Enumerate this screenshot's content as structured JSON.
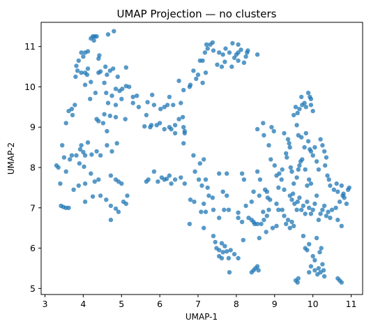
{
  "chart_data": {
    "type": "scatter",
    "title": "UMAP Projection — no clusters",
    "xlabel": "UMAP-1",
    "ylabel": "UMAP-2",
    "xlim": [
      2.9,
      11.3
    ],
    "ylim": [
      4.85,
      11.6
    ],
    "xticks": [
      3,
      4,
      5,
      6,
      7,
      8,
      9,
      10,
      11
    ],
    "yticks": [
      5,
      6,
      7,
      8,
      9,
      10,
      11
    ],
    "grid": false,
    "marker_color": "#1f77b4",
    "marker_alpha": 0.75,
    "points": [
      [
        4.25,
        11.25
      ],
      [
        4.3,
        11.25
      ],
      [
        4.35,
        11.25
      ],
      [
        4.2,
        11.2
      ],
      [
        4.28,
        11.15
      ],
      [
        4.65,
        11.3
      ],
      [
        4.8,
        11.38
      ],
      [
        3.95,
        10.85
      ],
      [
        4.05,
        10.85
      ],
      [
        4.12,
        10.88
      ],
      [
        4.0,
        10.75
      ],
      [
        4.4,
        10.7
      ],
      [
        4.42,
        10.78
      ],
      [
        3.88,
        10.65
      ],
      [
        3.82,
        10.52
      ],
      [
        4.58,
        10.5
      ],
      [
        4.12,
        10.45
      ],
      [
        3.85,
        10.4
      ],
      [
        3.95,
        10.35
      ],
      [
        4.05,
        10.35
      ],
      [
        4.4,
        10.35
      ],
      [
        4.45,
        10.38
      ],
      [
        3.8,
        10.25
      ],
      [
        4.1,
        10.3
      ],
      [
        4.62,
        10.3
      ],
      [
        4.78,
        10.45
      ],
      [
        4.7,
        10.4
      ],
      [
        5.12,
        10.48
      ],
      [
        4.9,
        10.25
      ],
      [
        4.2,
        10.12
      ],
      [
        4.55,
        10.1
      ],
      [
        4.05,
        10.05
      ],
      [
        5.02,
        9.95
      ],
      [
        5.12,
        10.02
      ],
      [
        5.2,
        10.0
      ],
      [
        4.85,
        9.95
      ],
      [
        4.95,
        9.9
      ],
      [
        5.0,
        9.7
      ],
      [
        4.32,
        9.85
      ],
      [
        4.6,
        9.85
      ],
      [
        4.75,
        9.78
      ],
      [
        4.18,
        9.7
      ],
      [
        3.78,
        9.55
      ],
      [
        4.65,
        9.6
      ],
      [
        4.85,
        9.55
      ],
      [
        3.72,
        9.3
      ],
      [
        3.62,
        9.4
      ],
      [
        3.7,
        9.45
      ],
      [
        3.55,
        9.1
      ],
      [
        4.35,
        9.2
      ],
      [
        4.4,
        9.15
      ],
      [
        4.55,
        9.32
      ],
      [
        4.7,
        9.28
      ],
      [
        4.85,
        9.25
      ],
      [
        5.1,
        9.2
      ],
      [
        4.52,
        9.1
      ],
      [
        5.3,
        9.75
      ],
      [
        5.3,
        9.6
      ],
      [
        5.4,
        9.78
      ],
      [
        5.45,
        9.5
      ],
      [
        5.8,
        9.8
      ],
      [
        5.68,
        9.62
      ],
      [
        5.85,
        9.55
      ],
      [
        5.65,
        9.3
      ],
      [
        6.02,
        9.45
      ],
      [
        6.12,
        9.5
      ],
      [
        6.2,
        9.55
      ],
      [
        6.35,
        9.55
      ],
      [
        6.25,
        9.75
      ],
      [
        6.55,
        9.6
      ],
      [
        6.5,
        10.15
      ],
      [
        6.62,
        9.92
      ],
      [
        6.78,
        10.0
      ],
      [
        6.8,
        10.05
      ],
      [
        6.95,
        10.2
      ],
      [
        7.0,
        10.3
      ],
      [
        7.2,
        10.35
      ],
      [
        6.88,
        10.4
      ],
      [
        5.78,
        9.05
      ],
      [
        5.6,
        9.02
      ],
      [
        5.75,
        9.0
      ],
      [
        5.92,
        9.05
      ],
      [
        6.0,
        9.1
      ],
      [
        6.12,
        8.95
      ],
      [
        6.4,
        9.05
      ],
      [
        6.25,
        9.0
      ],
      [
        6.3,
        8.95
      ],
      [
        6.62,
        9.0
      ],
      [
        6.4,
        8.85
      ],
      [
        6.5,
        9.2
      ],
      [
        6.6,
        9.25
      ],
      [
        6.65,
        8.9
      ],
      [
        6.65,
        8.85
      ],
      [
        7.05,
        10.65
      ],
      [
        7.12,
        10.65
      ],
      [
        7.18,
        10.85
      ],
      [
        7.22,
        11.05
      ],
      [
        7.25,
        10.95
      ],
      [
        7.32,
        11.05
      ],
      [
        7.38,
        11.1
      ],
      [
        7.4,
        10.9
      ],
      [
        7.12,
        10.1
      ],
      [
        7.5,
        10.55
      ],
      [
        7.62,
        10.5
      ],
      [
        7.7,
        10.62
      ],
      [
        7.65,
        10.8
      ],
      [
        7.55,
        10.85
      ],
      [
        7.72,
        10.95
      ],
      [
        7.82,
        10.85
      ],
      [
        7.9,
        11.08
      ],
      [
        8.0,
        10.8
      ],
      [
        8.05,
        10.85
      ],
      [
        8.12,
        10.92
      ],
      [
        8.05,
        10.65
      ],
      [
        7.95,
        10.72
      ],
      [
        7.88,
        10.5
      ],
      [
        8.2,
        10.6
      ],
      [
        8.25,
        10.75
      ],
      [
        8.28,
        10.85
      ],
      [
        8.3,
        10.9
      ],
      [
        8.55,
        10.8
      ],
      [
        8.05,
        11.05
      ],
      [
        3.3,
        8.05
      ],
      [
        3.35,
        8.0
      ],
      [
        3.45,
        8.55
      ],
      [
        3.5,
        8.25
      ],
      [
        3.55,
        7.9
      ],
      [
        3.65,
        8.2
      ],
      [
        3.7,
        8.3
      ],
      [
        3.82,
        8.3
      ],
      [
        3.92,
        8.45
      ],
      [
        3.95,
        8.55
      ],
      [
        4.0,
        8.38
      ],
      [
        4.05,
        8.3
      ],
      [
        4.12,
        8.62
      ],
      [
        4.22,
        8.32
      ],
      [
        4.35,
        8.4
      ],
      [
        4.45,
        8.3
      ],
      [
        4.62,
        8.55
      ],
      [
        3.9,
        8.1
      ],
      [
        4.02,
        8.02
      ],
      [
        4.2,
        7.85
      ],
      [
        4.05,
        7.6
      ],
      [
        4.3,
        7.65
      ],
      [
        4.4,
        7.7
      ],
      [
        4.72,
        7.8
      ],
      [
        4.85,
        7.7
      ],
      [
        4.92,
        7.65
      ],
      [
        5.0,
        7.6
      ],
      [
        4.75,
        8.4
      ],
      [
        4.88,
        8.6
      ],
      [
        4.62,
        8.9
      ],
      [
        3.4,
        7.6
      ],
      [
        3.75,
        7.45
      ],
      [
        3.88,
        7.55
      ],
      [
        3.42,
        7.05
      ],
      [
        3.48,
        7.02
      ],
      [
        3.55,
        7.0
      ],
      [
        3.62,
        7.0
      ],
      [
        4.25,
        7.28
      ],
      [
        4.05,
        7.15
      ],
      [
        4.45,
        7.3
      ],
      [
        4.6,
        7.2
      ],
      [
        4.72,
        7.05
      ],
      [
        4.85,
        6.98
      ],
      [
        4.92,
        6.9
      ],
      [
        4.72,
        6.7
      ],
      [
        5.05,
        7.15
      ],
      [
        5.15,
        7.3
      ],
      [
        5.12,
        7.1
      ],
      [
        5.65,
        7.65
      ],
      [
        5.7,
        7.7
      ],
      [
        5.85,
        7.9
      ],
      [
        5.95,
        7.65
      ],
      [
        6.05,
        7.75
      ],
      [
        6.12,
        7.7
      ],
      [
        6.18,
        7.72
      ],
      [
        6.25,
        7.8
      ],
      [
        6.3,
        7.6
      ],
      [
        6.4,
        7.7
      ],
      [
        6.55,
        7.75
      ],
      [
        6.62,
        8.6
      ],
      [
        6.65,
        7.6
      ],
      [
        6.88,
        8.3
      ],
      [
        6.92,
        7.9
      ],
      [
        6.8,
        7.2
      ],
      [
        6.9,
        7.15
      ],
      [
        7.02,
        7.7
      ],
      [
        7.05,
        8.1
      ],
      [
        7.1,
        7.55
      ],
      [
        7.15,
        8.2
      ],
      [
        7.2,
        7.7
      ],
      [
        7.25,
        7.5
      ],
      [
        7.28,
        7.3
      ],
      [
        7.15,
        7.1
      ],
      [
        6.78,
        6.6
      ],
      [
        7.08,
        6.9
      ],
      [
        7.2,
        6.9
      ],
      [
        7.15,
        6.5
      ],
      [
        7.38,
        7.25
      ],
      [
        7.4,
        6.95
      ],
      [
        7.55,
        7.85
      ],
      [
        7.75,
        7.85
      ],
      [
        7.65,
        7.4
      ],
      [
        7.75,
        7.3
      ],
      [
        7.68,
        6.95
      ],
      [
        7.55,
        6.75
      ],
      [
        7.8,
        6.95
      ],
      [
        7.4,
        6.3
      ],
      [
        7.45,
        6.15
      ],
      [
        7.48,
        6.0
      ],
      [
        7.55,
        5.95
      ],
      [
        7.62,
        6.12
      ],
      [
        7.7,
        6.05
      ],
      [
        7.55,
        5.8
      ],
      [
        7.65,
        5.9
      ],
      [
        7.75,
        5.92
      ],
      [
        7.8,
        5.75
      ],
      [
        7.85,
        5.95
      ],
      [
        7.95,
        5.85
      ],
      [
        8.05,
        5.75
      ],
      [
        7.82,
        5.4
      ],
      [
        7.62,
        5.75
      ],
      [
        8.05,
        6.75
      ],
      [
        8.05,
        6.88
      ],
      [
        8.15,
        6.65
      ],
      [
        8.18,
        6.2
      ],
      [
        8.32,
        6.75
      ],
      [
        8.4,
        6.7
      ],
      [
        8.45,
        6.65
      ],
      [
        8.48,
        6.6
      ],
      [
        8.55,
        6.6
      ],
      [
        8.25,
        7.05
      ],
      [
        8.15,
        7.85
      ],
      [
        8.2,
        7.7
      ],
      [
        8.45,
        7.4
      ],
      [
        8.55,
        7.9
      ],
      [
        8.6,
        7.3
      ],
      [
        8.62,
        7.7
      ],
      [
        8.75,
        7.45
      ],
      [
        8.8,
        7.4
      ],
      [
        8.82,
        7.25
      ],
      [
        8.88,
        7.2
      ],
      [
        8.4,
        7.15
      ],
      [
        8.7,
        6.9
      ],
      [
        8.8,
        6.8
      ],
      [
        8.85,
        6.95
      ],
      [
        8.72,
        6.7
      ],
      [
        8.65,
        6.6
      ],
      [
        8.6,
        6.25
      ],
      [
        8.78,
        6.4
      ],
      [
        8.95,
        6.5
      ],
      [
        9.05,
        6.55
      ],
      [
        8.4,
        5.4
      ],
      [
        8.45,
        5.45
      ],
      [
        8.5,
        5.5
      ],
      [
        8.55,
        5.55
      ],
      [
        8.58,
        5.45
      ],
      [
        8.55,
        8.95
      ],
      [
        8.7,
        9.1
      ],
      [
        8.72,
        8.8
      ],
      [
        8.85,
        8.55
      ],
      [
        8.9,
        8.2
      ],
      [
        8.92,
        9.0
      ],
      [
        8.98,
        8.9
      ],
      [
        9.0,
        8.05
      ],
      [
        9.05,
        7.8
      ],
      [
        9.12,
        7.85
      ],
      [
        9.2,
        7.95
      ],
      [
        9.1,
        7.5
      ],
      [
        9.18,
        7.7
      ],
      [
        9.25,
        8.85
      ],
      [
        9.3,
        8.35
      ],
      [
        9.32,
        8.25
      ],
      [
        9.35,
        8.7
      ],
      [
        9.38,
        8.6
      ],
      [
        9.4,
        8.5
      ],
      [
        9.42,
        8.0
      ],
      [
        9.45,
        7.9
      ],
      [
        9.5,
        7.6
      ],
      [
        9.5,
        9.3
      ],
      [
        9.55,
        9.5
      ],
      [
        9.58,
        9.05
      ],
      [
        9.6,
        9.35
      ],
      [
        9.65,
        9.45
      ],
      [
        9.7,
        9.75
      ],
      [
        9.72,
        9.55
      ],
      [
        9.78,
        9.6
      ],
      [
        9.82,
        9.5
      ],
      [
        9.88,
        9.85
      ],
      [
        9.92,
        9.75
      ],
      [
        9.95,
        9.7
      ],
      [
        9.95,
        9.55
      ],
      [
        10.0,
        9.4
      ],
      [
        9.62,
        8.8
      ],
      [
        9.7,
        8.75
      ],
      [
        9.78,
        8.5
      ],
      [
        9.82,
        8.85
      ],
      [
        9.88,
        8.65
      ],
      [
        9.92,
        8.45
      ],
      [
        9.95,
        8.4
      ],
      [
        9.58,
        7.75
      ],
      [
        9.62,
        7.95
      ],
      [
        9.65,
        8.05
      ],
      [
        9.68,
        8.15
      ],
      [
        9.72,
        8.2
      ],
      [
        9.8,
        7.95
      ],
      [
        9.85,
        7.55
      ],
      [
        9.9,
        7.7
      ],
      [
        9.95,
        7.6
      ],
      [
        10.0,
        8.3
      ],
      [
        10.05,
        8.5
      ],
      [
        10.1,
        8.15
      ],
      [
        10.15,
        7.95
      ],
      [
        10.2,
        8.7
      ],
      [
        10.25,
        8.55
      ],
      [
        10.3,
        8.4
      ],
      [
        10.32,
        8.05
      ],
      [
        10.35,
        8.25
      ],
      [
        10.38,
        7.8
      ],
      [
        10.42,
        7.7
      ],
      [
        10.45,
        7.55
      ],
      [
        10.55,
        7.45
      ],
      [
        10.62,
        7.6
      ],
      [
        10.65,
        7.4
      ],
      [
        10.75,
        7.55
      ],
      [
        10.8,
        7.35
      ],
      [
        10.82,
        7.25
      ],
      [
        10.88,
        7.1
      ],
      [
        10.92,
        7.45
      ],
      [
        10.95,
        7.5
      ],
      [
        10.78,
        7.3
      ],
      [
        10.7,
        7.15
      ],
      [
        9.4,
        7.3
      ],
      [
        9.45,
        7.2
      ],
      [
        9.48,
        7.35
      ],
      [
        9.52,
        7.1
      ],
      [
        9.58,
        6.95
      ],
      [
        9.6,
        7.15
      ],
      [
        9.65,
        7.25
      ],
      [
        9.7,
        6.95
      ],
      [
        9.75,
        7.05
      ],
      [
        9.8,
        6.85
      ],
      [
        9.85,
        7.15
      ],
      [
        9.9,
        7.0
      ],
      [
        9.95,
        6.85
      ],
      [
        10.0,
        6.95
      ],
      [
        10.05,
        7.1
      ],
      [
        10.1,
        7.3
      ],
      [
        10.15,
        6.7
      ],
      [
        10.2,
        6.85
      ],
      [
        10.25,
        6.95
      ],
      [
        10.3,
        7.05
      ],
      [
        10.35,
        6.8
      ],
      [
        10.4,
        6.9
      ],
      [
        10.45,
        6.75
      ],
      [
        10.5,
        6.95
      ],
      [
        10.6,
        7.0
      ],
      [
        10.65,
        6.7
      ],
      [
        10.75,
        6.55
      ],
      [
        9.05,
        7.1
      ],
      [
        9.1,
        6.95
      ],
      [
        9.2,
        6.95
      ],
      [
        9.25,
        6.8
      ],
      [
        9.3,
        6.6
      ],
      [
        9.35,
        6.7
      ],
      [
        9.4,
        6.5
      ],
      [
        9.45,
        6.65
      ],
      [
        9.5,
        6.55
      ],
      [
        9.25,
        7.45
      ],
      [
        9.75,
        6.3
      ],
      [
        9.8,
        6.0
      ],
      [
        9.85,
        5.95
      ],
      [
        9.9,
        6.1
      ],
      [
        9.95,
        5.55
      ],
      [
        10.0,
        5.8
      ],
      [
        10.05,
        5.7
      ],
      [
        10.1,
        6.25
      ],
      [
        10.12,
        5.35
      ],
      [
        10.15,
        5.5
      ],
      [
        10.18,
        5.9
      ],
      [
        10.2,
        5.4
      ],
      [
        10.22,
        6.0
      ],
      [
        10.25,
        5.6
      ],
      [
        10.28,
        5.45
      ],
      [
        10.3,
        5.3
      ],
      [
        10.05,
        5.45
      ],
      [
        9.9,
        5.4
      ],
      [
        9.6,
        5.15
      ],
      [
        9.55,
        5.2
      ],
      [
        9.62,
        5.25
      ],
      [
        10.65,
        5.25
      ],
      [
        10.7,
        5.2
      ],
      [
        10.75,
        5.15
      ]
    ]
  }
}
